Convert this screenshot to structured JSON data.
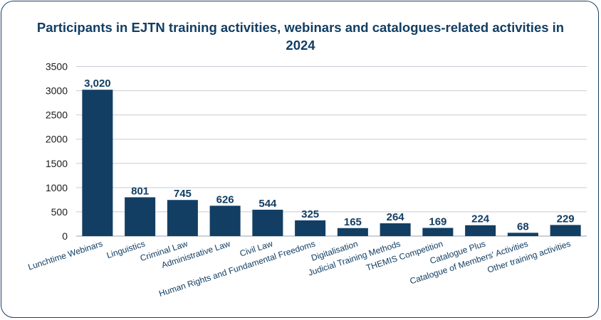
{
  "chart_data": {
    "type": "bar",
    "title": "Participants in EJTN training activities, webinars and catalogues-related activities in 2024",
    "xlabel": "",
    "ylabel": "",
    "categories": [
      "Lunchtime Webinars",
      "Linguistics",
      "Criminal Law",
      "Administrative Law",
      "Civil Law",
      "Human Rights and Fundamental Freedoms",
      "Digitalisation",
      "Judicial Training Methods",
      "THEMIS Competition",
      "Catalogue Plus",
      "Catalogue of Members' Activities",
      "Other training activities"
    ],
    "values": [
      3020,
      801,
      745,
      626,
      544,
      325,
      165,
      264,
      169,
      224,
      68,
      229
    ],
    "data_labels": [
      "3,020",
      "801",
      "745",
      "626",
      "544",
      "325",
      "165",
      "264",
      "169",
      "224",
      "68",
      "229"
    ],
    "ylim": [
      0,
      3500
    ],
    "yticks": [
      "0",
      "500",
      "1000",
      "1500",
      "2000",
      "2500",
      "3000",
      "3500"
    ],
    "grid": true,
    "legend": "none",
    "colors": {
      "bar": "#123e63",
      "title": "#123e63",
      "grid": "#c8cdd3",
      "text": "#1c1c1c"
    }
  }
}
